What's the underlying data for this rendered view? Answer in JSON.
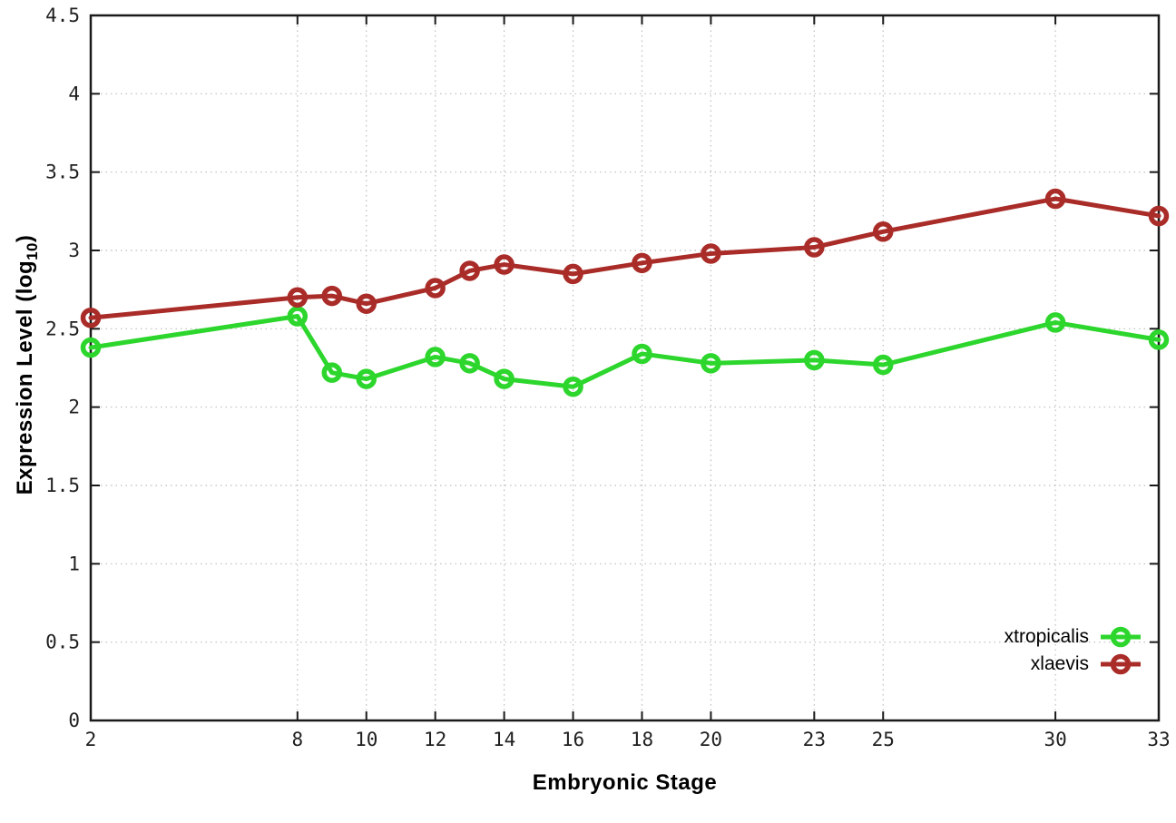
{
  "chart_data": {
    "type": "line",
    "title": "",
    "xlabel": "Embryonic Stage",
    "ylabel": "Expression Level (log10)",
    "ylabel_parts": {
      "prefix": "Expression Level (log",
      "sub": "10",
      "suffix": ")"
    },
    "xlim": [
      2,
      33
    ],
    "ylim": [
      0,
      4.5
    ],
    "xticks": [
      2,
      8,
      10,
      12,
      14,
      16,
      18,
      20,
      23,
      25,
      30,
      33
    ],
    "yticks": [
      0,
      0.5,
      1,
      1.5,
      2,
      2.5,
      3,
      3.5,
      4,
      4.5
    ],
    "grid": true,
    "legend_position": "bottom-right",
    "x": [
      2,
      8,
      9,
      10,
      12,
      13,
      14,
      16,
      18,
      20,
      23,
      25,
      30,
      33
    ],
    "series": [
      {
        "name": "xtropicalis",
        "color": "#2dd62d",
        "values": [
          2.38,
          2.58,
          2.22,
          2.18,
          2.32,
          2.28,
          2.18,
          2.13,
          2.34,
          2.28,
          2.3,
          2.27,
          2.54,
          2.43
        ]
      },
      {
        "name": "xlaevis",
        "color": "#a92c28",
        "values": [
          2.57,
          2.7,
          2.71,
          2.66,
          2.76,
          2.87,
          2.91,
          2.85,
          2.92,
          2.98,
          3.02,
          3.12,
          3.33,
          3.22
        ]
      }
    ],
    "style": {
      "grid_color": "#bcbcbc",
      "border_color": "#1a1a1a",
      "line_width": 5,
      "marker": "open-circle",
      "marker_radius": 8.5
    }
  }
}
